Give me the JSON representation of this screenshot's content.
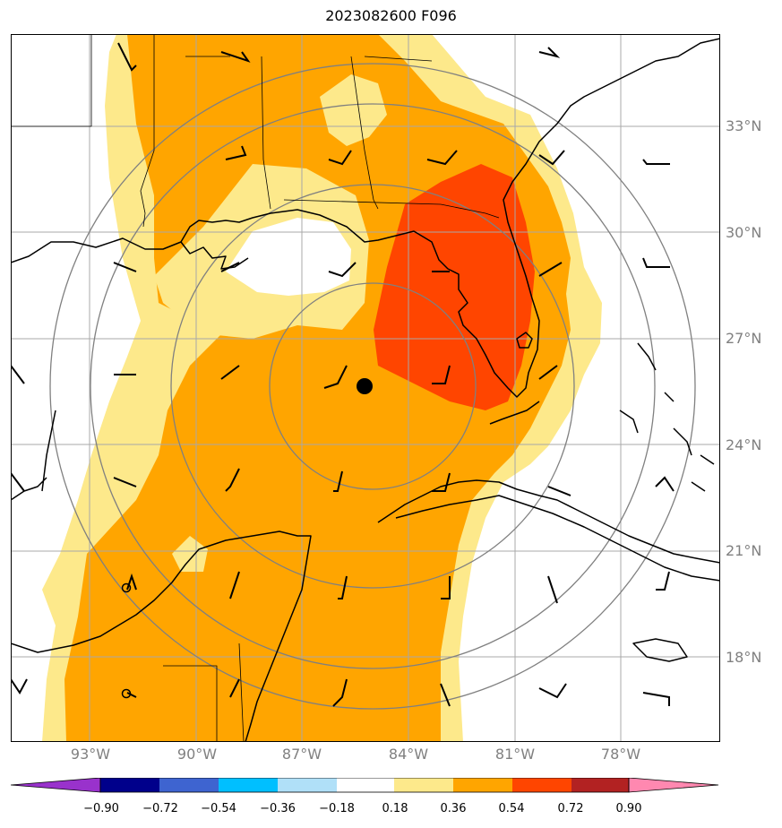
{
  "title": "2023082600 F096",
  "map": {
    "lat_labels": [
      "33°N",
      "30°N",
      "27°N",
      "24°N",
      "21°N",
      "18°N"
    ],
    "lon_labels": [
      "93°W",
      "90°W",
      "87°W",
      "84°W",
      "81°W",
      "78°W"
    ],
    "extent": {
      "lon_min": -95.2,
      "lon_max": -75.2,
      "lat_min": 15.8,
      "lat_max": 35.8
    },
    "storm_center": {
      "lon": -85.2,
      "lat": 25.6
    },
    "colors": {
      "band_018_036": "#fde98b",
      "band_036_054": "#ffa500",
      "band_054_072": "#ff4500",
      "land_outline": "#000000",
      "grid": "#a0a0a0",
      "range_rings": "#808080"
    }
  },
  "colorbar": {
    "ticks": [
      "−0.90",
      "−0.72",
      "−0.54",
      "−0.36",
      "−0.18",
      "0.18",
      "0.36",
      "0.54",
      "0.72",
      "0.90"
    ],
    "colors": [
      "#9932cc",
      "#00008b",
      "#3e64d0",
      "#00bfff",
      "#b0e0f8",
      "#ffffff",
      "#fde98b",
      "#ffa500",
      "#ff4500",
      "#b22222",
      "#ff88b0",
      "#ff88b0"
    ]
  }
}
